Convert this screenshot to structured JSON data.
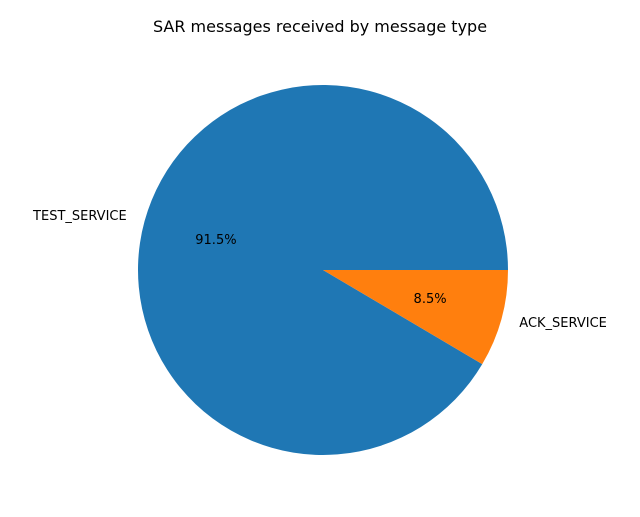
{
  "chart_data": {
    "type": "pie",
    "title": "SAR messages received by message type",
    "start_angle_deg": 0,
    "direction": "counterclockwise",
    "slices": [
      {
        "label": "TEST_SERVICE",
        "value": 91.5,
        "pct_label": "91.5%",
        "color": "#1f77b4"
      },
      {
        "label": "ACK_SERVICE",
        "value": 8.5,
        "pct_label": "8.5%",
        "color": "#ff7f0e"
      }
    ],
    "legend": "none"
  }
}
